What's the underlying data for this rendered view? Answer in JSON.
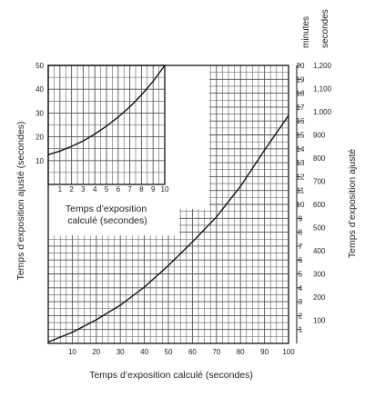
{
  "chart_data": {
    "type": "line",
    "xlabel": "Temps d’exposition calculé (secondes)",
    "ylabel": "Temps d’exposition ajusté (secondes)",
    "right_ylabel": "Temps d’exposition ajusté",
    "right_header": [
      "minutes",
      "secondes"
    ],
    "xlim": [
      0,
      100
    ],
    "ylim": [
      0,
      20
    ],
    "x_ticks": [
      "10",
      "20",
      "30",
      "40",
      "50",
      "60",
      "70",
      "80",
      "90",
      "100"
    ],
    "y_ticks_minutes": [
      "1",
      "2",
      "3",
      "4",
      "5",
      "6",
      "7",
      "8",
      "9",
      "10",
      "11",
      "12",
      "13",
      "14",
      "15",
      "16",
      "17",
      "18",
      "19",
      "20"
    ],
    "y_ticks_seconds": [
      {
        "at": 1.6667,
        "label": "100"
      },
      {
        "at": 3.3333,
        "label": "200"
      },
      {
        "at": 5,
        "label": "300"
      },
      {
        "at": 6.6667,
        "label": "400"
      },
      {
        "at": 8.3333,
        "label": "500"
      },
      {
        "at": 10,
        "label": "600"
      },
      {
        "at": 11.6667,
        "label": "700"
      },
      {
        "at": 13.3333,
        "label": "800"
      },
      {
        "at": 15,
        "label": "900"
      },
      {
        "at": 16.6667,
        "label": "1,000"
      },
      {
        "at": 18.3333,
        "label": "1,100"
      },
      {
        "at": 20,
        "label": "1,200"
      }
    ],
    "grid": true,
    "series": [
      {
        "x": [
          0,
          10,
          20,
          30,
          40,
          50,
          60,
          70,
          80,
          90,
          100
        ],
        "y": [
          0.1,
          0.8,
          1.7,
          2.75,
          4.05,
          5.6,
          7.3,
          9.1,
          11.3,
          13.9,
          16.4
        ]
      }
    ],
    "inset": {
      "x_ticks": [
        "1",
        "2",
        "3",
        "4",
        "5",
        "6",
        "7",
        "8",
        "9",
        "10"
      ],
      "y_ticks": [
        "10",
        "20",
        "30",
        "40",
        "50"
      ],
      "xlabel": "Temps d’exposition calculé (secondes)",
      "xlim": [
        0,
        10
      ],
      "ylim": [
        0,
        50
      ],
      "series": [
        {
          "x": [
            0,
            1,
            2,
            3,
            4,
            5,
            6,
            7,
            8,
            9,
            10
          ],
          "y": [
            12.5,
            14,
            16,
            18.3,
            21.2,
            24.5,
            28.3,
            32.6,
            37.6,
            43.3,
            50
          ]
        }
      ]
    }
  }
}
